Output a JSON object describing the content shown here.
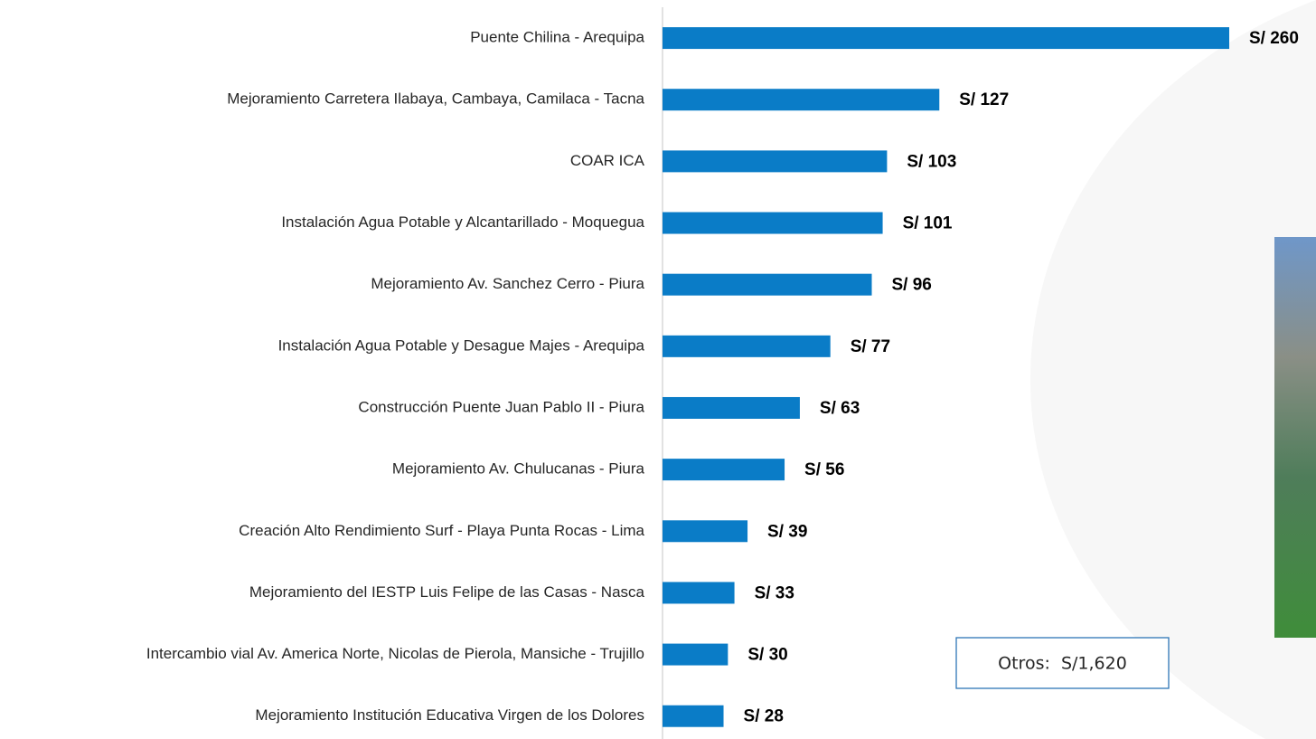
{
  "chart_data": {
    "type": "bar",
    "orientation": "horizontal",
    "categories": [
      "Puente Chilina - Arequipa",
      "Mejoramiento Carretera Ilabaya, Cambaya, Camilaca - Tacna",
      "COAR ICA",
      "Instalación Agua Potable y Alcantarillado - Moquegua",
      "Mejoramiento Av. Sanchez Cerro - Piura",
      "Instalación Agua Potable y Desague Majes - Arequipa",
      "Construcción Puente Juan Pablo II - Piura",
      "Mejoramiento Av. Chulucanas - Piura",
      "Creación Alto Rendimiento Surf - Playa Punta Rocas - Lima",
      "Mejoramiento del IESTP Luis Felipe de las Casas - Nasca",
      "Intercambio vial Av. America Norte, Nicolas de Pierola, Mansiche - Trujillo",
      "Mejoramiento Institución Educativa Virgen de los Dolores"
    ],
    "values": [
      260,
      127,
      103,
      101,
      96,
      77,
      63,
      56,
      39,
      33,
      30,
      28
    ],
    "value_labels": [
      "S/ 260",
      "S/ 127",
      "S/ 103",
      "S/ 101",
      "S/ 96",
      "S/ 77",
      "S/ 63",
      "S/ 56",
      "S/ 39",
      "S/ 33",
      "S/ 30",
      "S/ 28"
    ],
    "color": "#0a7cc7",
    "xlim": [
      0,
      260
    ],
    "annotation": "Otros:  S/1,620"
  }
}
